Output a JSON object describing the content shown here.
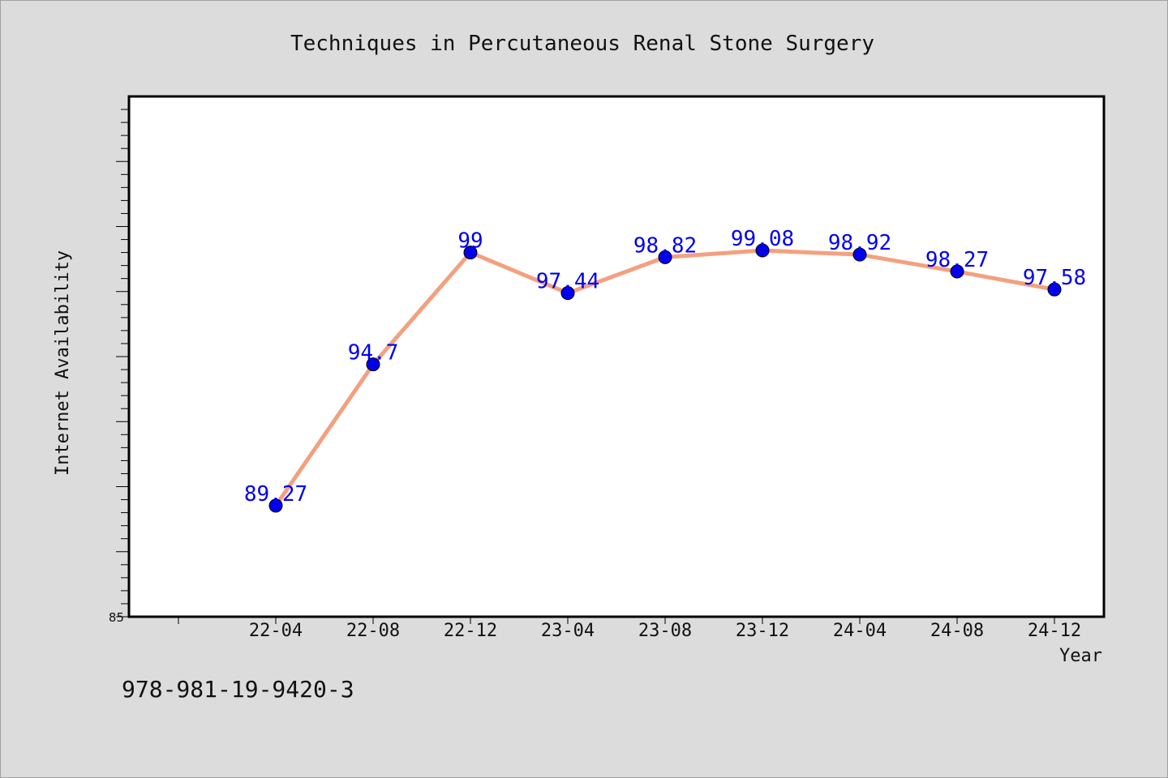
{
  "chart_data": {
    "type": "line",
    "title": "Techniques in Percutaneous Renal Stone Surgery",
    "xlabel": "Year",
    "ylabel": "Internet Availability",
    "categories": [
      "22-04",
      "22-08",
      "22-12",
      "23-04",
      "23-08",
      "23-12",
      "24-04",
      "24-08",
      "24-12"
    ],
    "series": [
      {
        "values": [
          89.27,
          94.7,
          99,
          97.44,
          98.82,
          99.08,
          98.92,
          98.27,
          97.58
        ],
        "value_labels": [
          "89.27",
          "94.7",
          "99",
          "97.44",
          "98.82",
          "99.08",
          "98.92",
          "98.27",
          "97.58"
        ],
        "line_color": "#f4a07f",
        "marker_color": "#0000ee"
      }
    ],
    "yticks_labeled": [
      "85"
    ],
    "ylim": [
      85,
      105
    ],
    "grid": false,
    "legend": "none"
  },
  "footer": {
    "isbn": "978-981-19-9420-3"
  }
}
